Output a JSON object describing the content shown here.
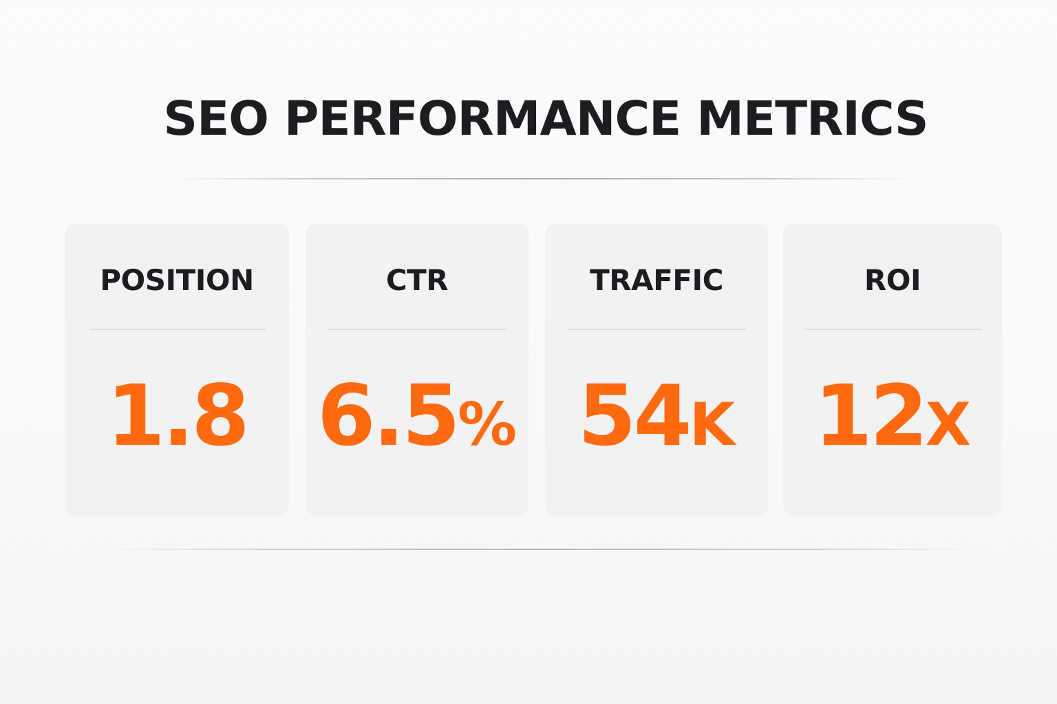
{
  "header": {
    "title": "SEO PERFORMANCE METRICS"
  },
  "theme": {
    "accent": "#ff6a10",
    "text": "#1c1d21",
    "card_bg": "#f2f2f3",
    "background": "#fafafa"
  },
  "metrics": [
    {
      "label": "POSITION",
      "value": "1.8",
      "suffix": ""
    },
    {
      "label": "CTR",
      "value": "6.5",
      "suffix": "%"
    },
    {
      "label": "TRAFFIC",
      "value": "54",
      "suffix": "K"
    },
    {
      "label": "ROI",
      "value": "12",
      "suffix": "X"
    }
  ]
}
